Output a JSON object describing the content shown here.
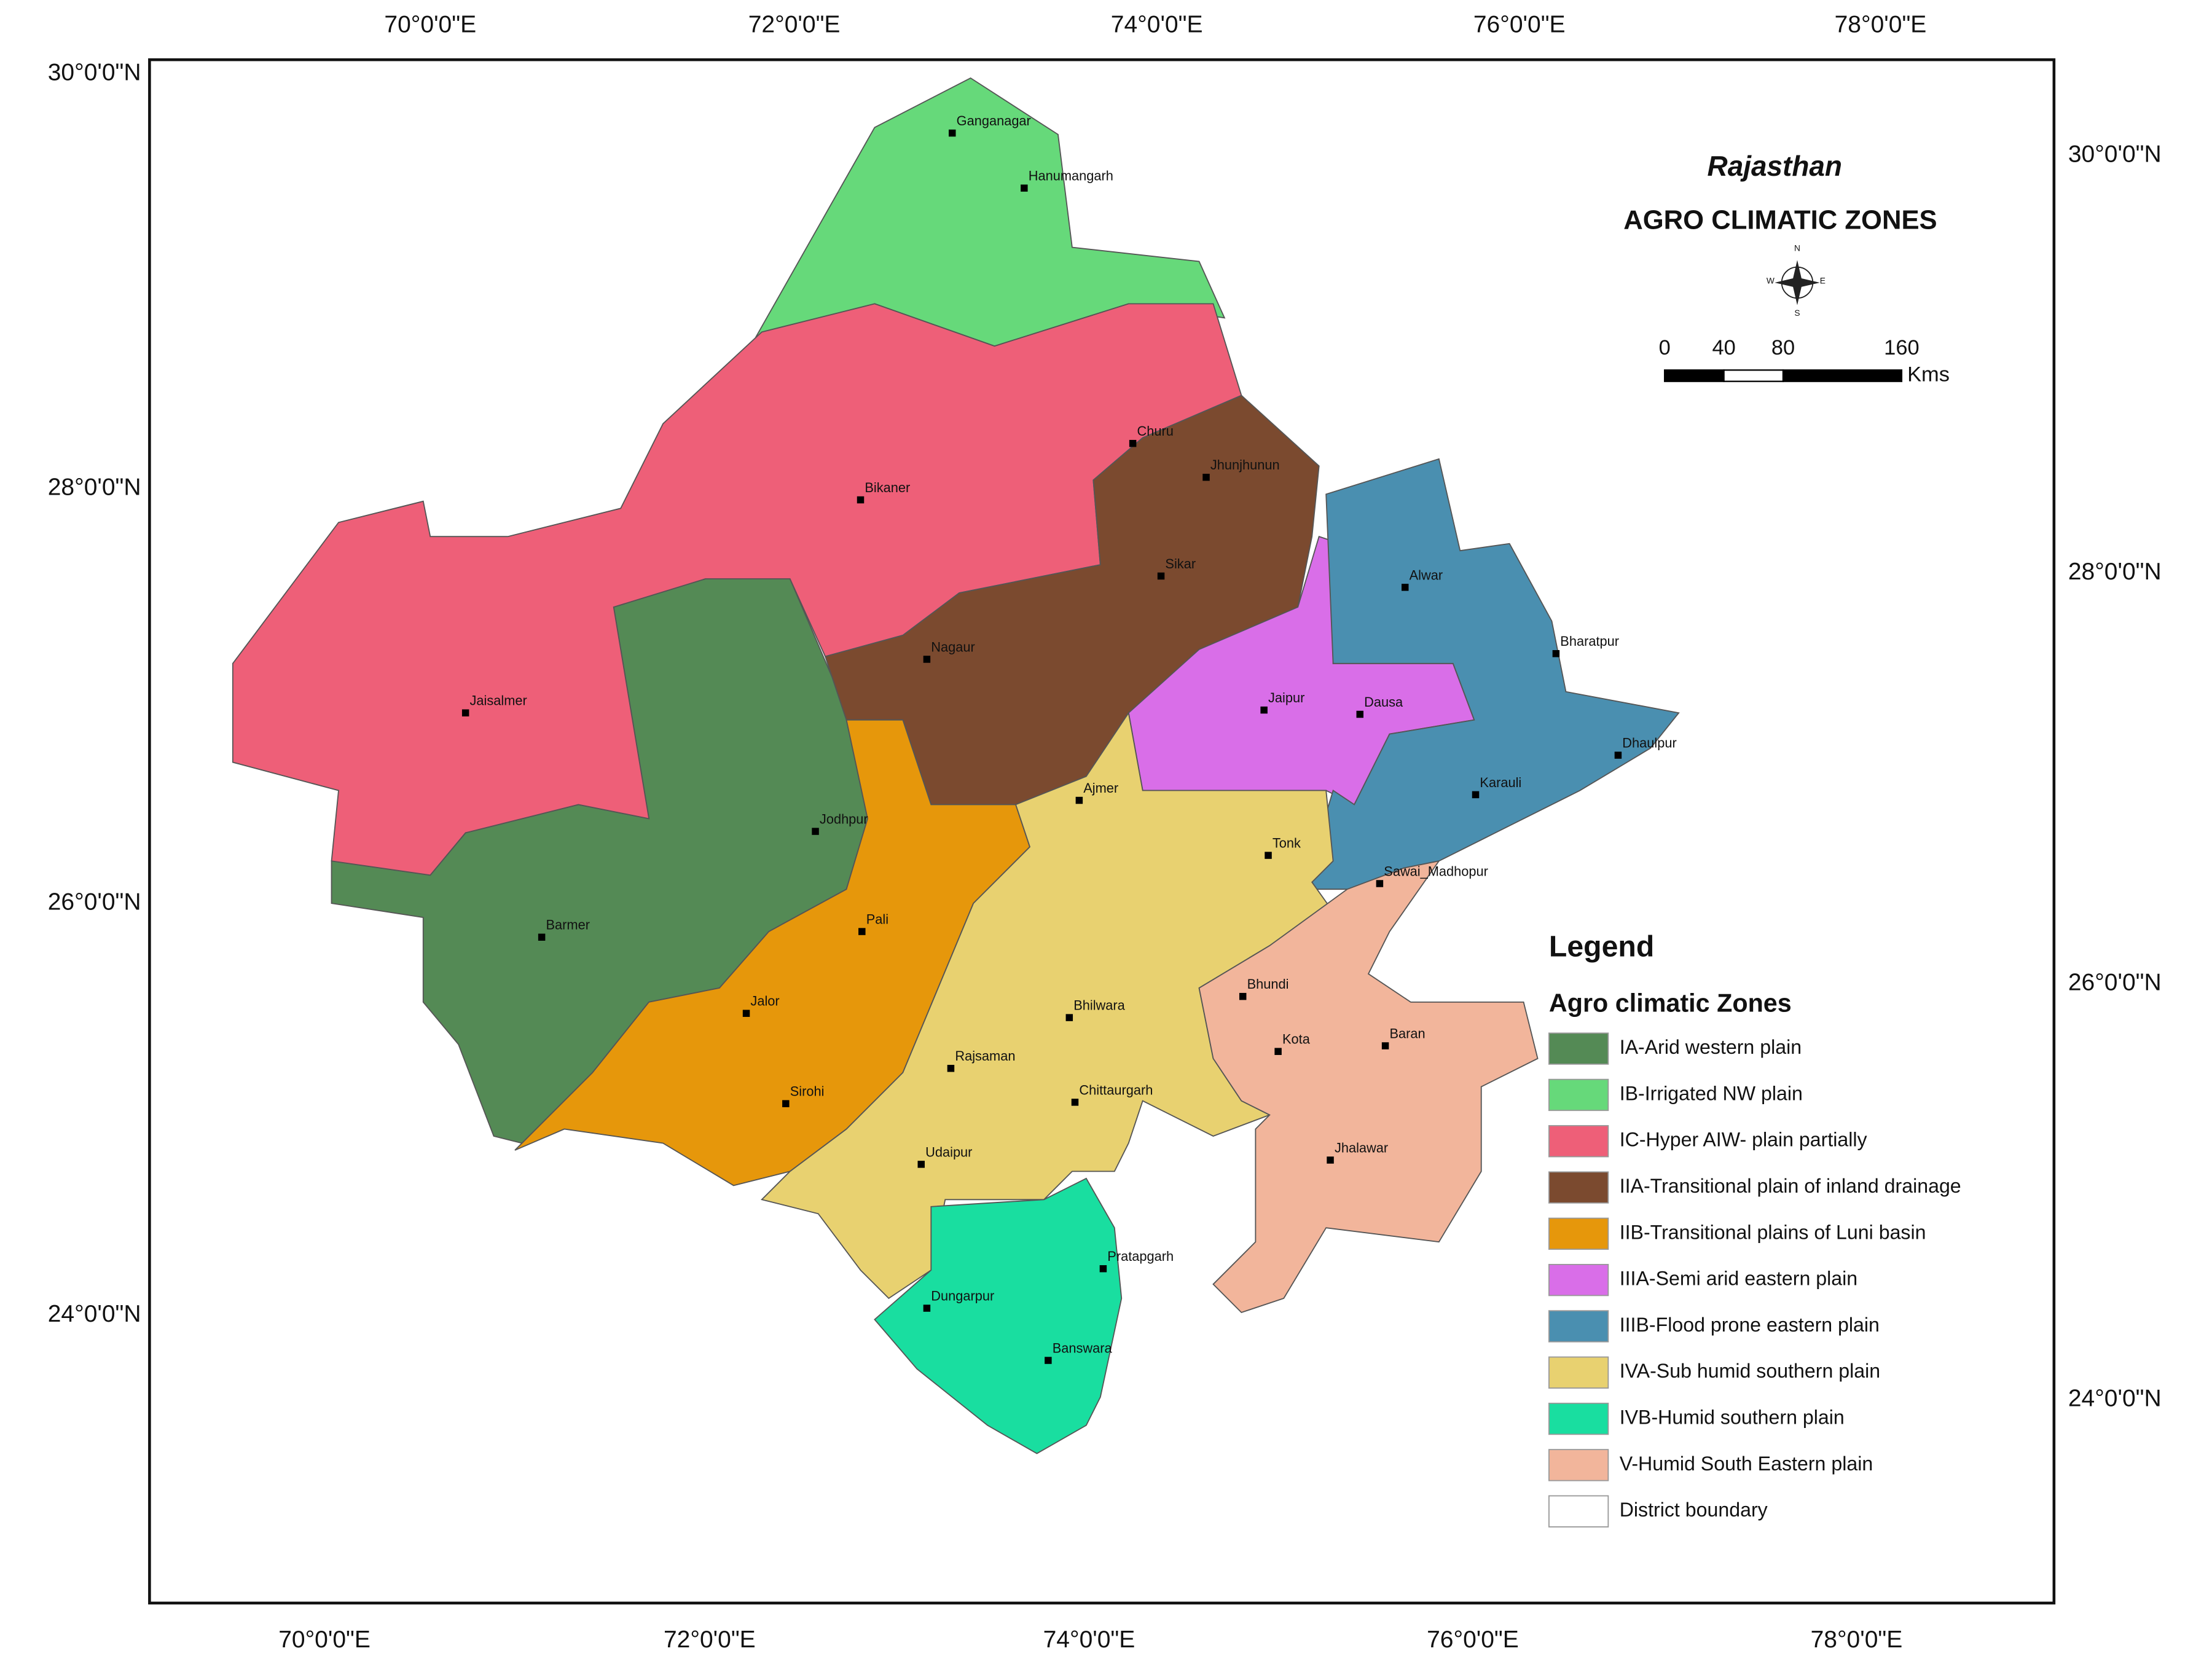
{
  "title": "Rajasthan",
  "subtitle": "AGRO CLIMATIC ZONES",
  "compass": [
    "N",
    "E",
    "S",
    "W"
  ],
  "scale_bar": {
    "ticks": [
      0,
      40,
      80,
      160
    ],
    "unit": "Kms"
  },
  "graticule": {
    "top": [
      "70°0'0\"E",
      "72°0'0\"E",
      "74°0'0\"E",
      "76°0'0\"E",
      "78°0'0\"E"
    ],
    "bottom": [
      "70°0'0\"E",
      "72°0'0\"E",
      "74°0'0\"E",
      "76°0'0\"E",
      "78°0'0\"E"
    ],
    "left": [
      "30°0'0\"N",
      "28°0'0\"N",
      "26°0'0\"N",
      "24°0'0\"N"
    ],
    "right": [
      "30°0'0\"N",
      "28°0'0\"N",
      "26°0'0\"N",
      "24°0'0\"N"
    ]
  },
  "legend": {
    "title": "Legend",
    "subtitle": "Agro climatic Zones",
    "items": [
      {
        "label": "IA-Arid western plain",
        "color": "#548a55"
      },
      {
        "label": "IB-Irrigated NW plain",
        "color": "#66d97a"
      },
      {
        "label": "IC-Hyper AIW- plain partially",
        "color": "#ee5f78"
      },
      {
        "label": "IIA-Transitional plain of inland drainage",
        "color": "#7b4a2f"
      },
      {
        "label": "IIB-Transitional plains of Luni basin",
        "color": "#e6970b"
      },
      {
        "label": "IIIA-Semi arid eastern plain",
        "color": "#d96ee8"
      },
      {
        "label": "IIIB-Flood prone eastern plain",
        "color": "#4a8fb0"
      },
      {
        "label": "IVA-Sub humid southern plain",
        "color": "#e8d170"
      },
      {
        "label": "IVB-Humid southern plain",
        "color": "#19dea0"
      },
      {
        "label": "V-Humid South Eastern plain",
        "color": "#f2b59b"
      },
      {
        "label": "District boundary",
        "color": "#ffffff"
      }
    ]
  },
  "districts": [
    "Ganganagar",
    "Hanumangarh",
    "Churu",
    "Bikaner",
    "Jhunjhunun",
    "Sikar",
    "Nagaur",
    "Alwar",
    "Bharatpur",
    "Jaisalmer",
    "Jaipur",
    "Dausa",
    "Dhaulpur",
    "Karauli",
    "Ajmer",
    "Jodhpur",
    "Tonk",
    "Sawai_Madhopur",
    "Barmer",
    "Pali",
    "Bhundi",
    "Jalor",
    "Bhilwara",
    "Kota",
    "Baran",
    "Rajsaman",
    "Chittaurgarh",
    "Sirohi",
    "Jhalawar",
    "Udaipur",
    "Pratapgarh",
    "Dungarpur",
    "Banswara"
  ]
}
